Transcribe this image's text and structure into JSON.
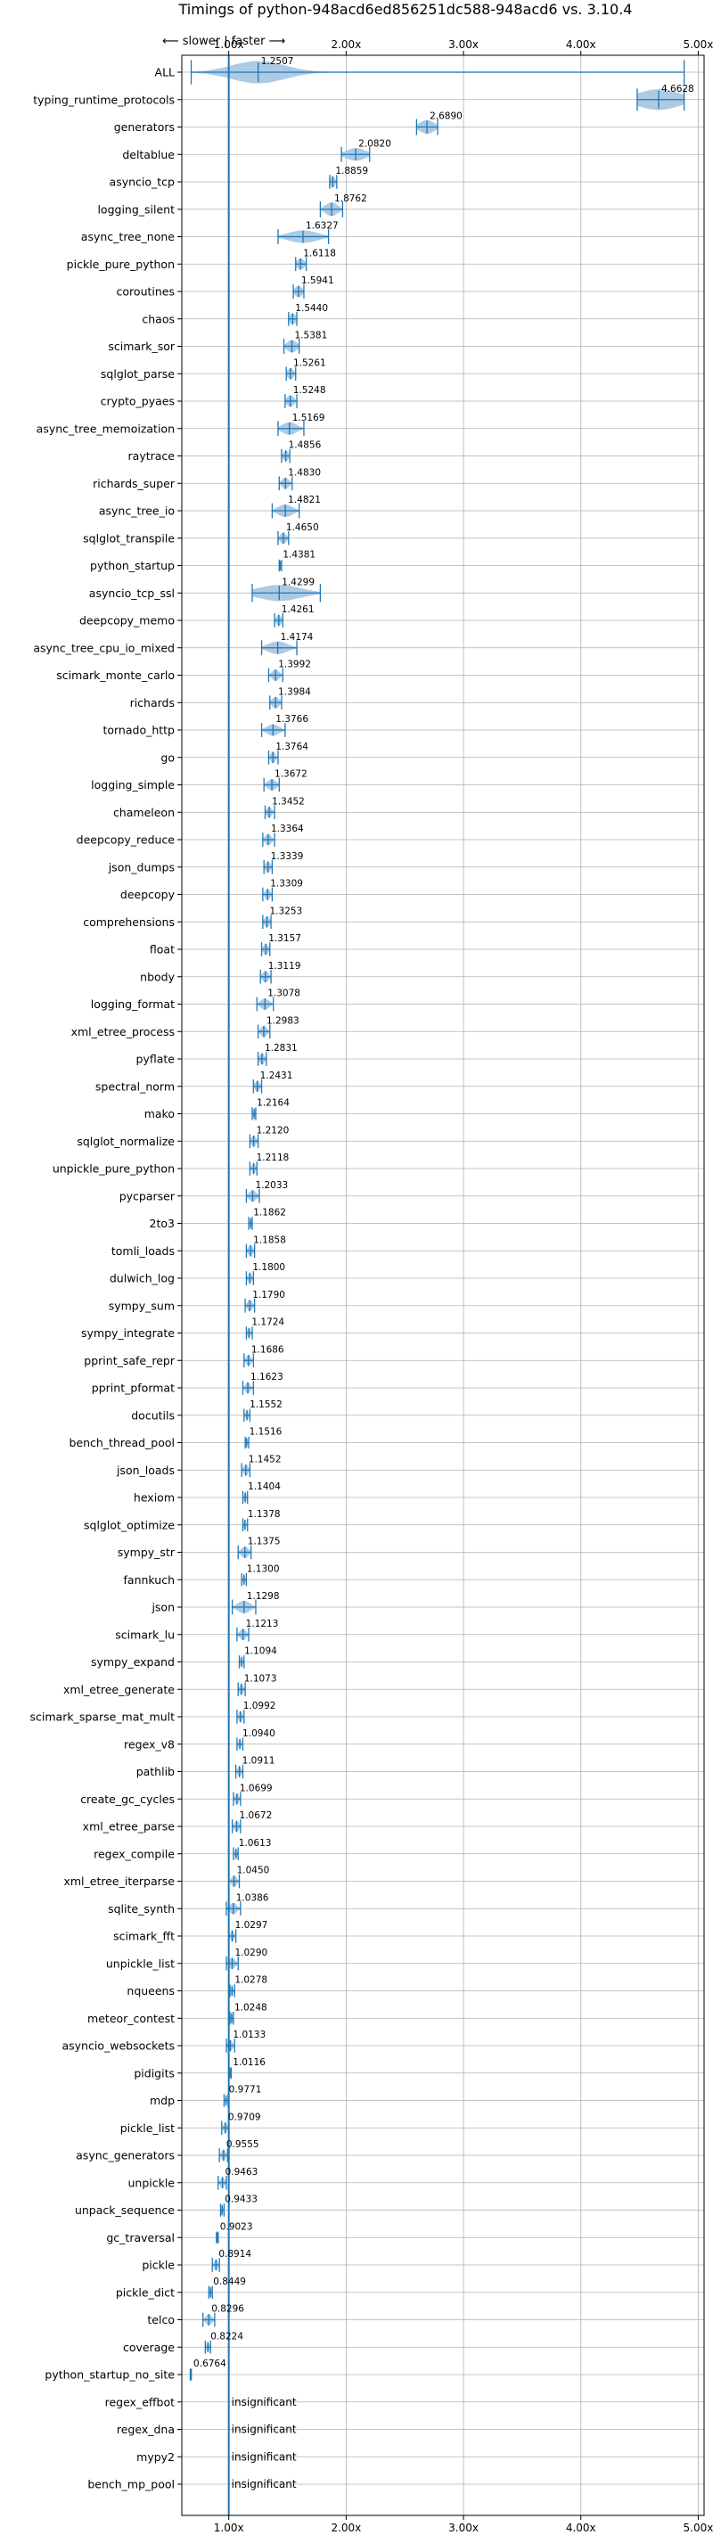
{
  "chart_data": {
    "type": "violin",
    "title": "Timings of python-948acd6ed856251dc588-948acd6 vs. 3.10.4",
    "direction_label": "⟵ slower | faster ⟶",
    "x_ticks": [
      {
        "value": 1.0,
        "label": "1.00x"
      },
      {
        "value": 2.0,
        "label": "2.00x"
      },
      {
        "value": 3.0,
        "label": "3.00x"
      },
      {
        "value": 4.0,
        "label": "4.00x"
      },
      {
        "value": 5.0,
        "label": "5.00x"
      }
    ],
    "xlim": [
      0.6,
      5.05
    ],
    "reference_line": 1.0,
    "grid": true,
    "insignificant_label": "insignificant",
    "benchmarks": [
      {
        "name": "ALL",
        "value": 1.2507,
        "low": 0.68,
        "high": 4.88,
        "spread": 0.22,
        "width": 1.0
      },
      {
        "name": "typing_runtime_protocols",
        "value": 4.6628,
        "low": 4.48,
        "high": 4.88,
        "spread": 0.18,
        "width": 0.9
      },
      {
        "name": "generators",
        "value": 2.689,
        "low": 2.6,
        "high": 2.78,
        "spread": 0.06,
        "width": 0.6
      },
      {
        "name": "deltablue",
        "value": 2.082,
        "low": 1.96,
        "high": 2.2,
        "spread": 0.08,
        "width": 0.55
      },
      {
        "name": "asyncio_tcp",
        "value": 1.8859,
        "low": 1.86,
        "high": 1.92,
        "spread": 0.02,
        "width": 0.5
      },
      {
        "name": "logging_silent",
        "value": 1.8762,
        "low": 1.78,
        "high": 1.97,
        "spread": 0.05,
        "width": 0.6
      },
      {
        "name": "async_tree_none",
        "value": 1.6327,
        "low": 1.42,
        "high": 1.85,
        "spread": 0.12,
        "width": 0.55
      },
      {
        "name": "pickle_pure_python",
        "value": 1.6118,
        "low": 1.57,
        "high": 1.66,
        "spread": 0.03,
        "width": 0.5
      },
      {
        "name": "coroutines",
        "value": 1.5941,
        "low": 1.55,
        "high": 1.64,
        "spread": 0.03,
        "width": 0.5
      },
      {
        "name": "chaos",
        "value": 1.544,
        "low": 1.51,
        "high": 1.58,
        "spread": 0.025,
        "width": 0.5
      },
      {
        "name": "scimark_sor",
        "value": 1.5381,
        "low": 1.47,
        "high": 1.6,
        "spread": 0.04,
        "width": 0.55
      },
      {
        "name": "sqlglot_parse",
        "value": 1.5261,
        "low": 1.49,
        "high": 1.57,
        "spread": 0.025,
        "width": 0.5
      },
      {
        "name": "crypto_pyaes",
        "value": 1.5248,
        "low": 1.48,
        "high": 1.58,
        "spread": 0.03,
        "width": 0.5
      },
      {
        "name": "async_tree_memoization",
        "value": 1.5169,
        "low": 1.42,
        "high": 1.64,
        "spread": 0.06,
        "width": 0.55
      },
      {
        "name": "raytrace",
        "value": 1.4856,
        "low": 1.45,
        "high": 1.52,
        "spread": 0.02,
        "width": 0.5
      },
      {
        "name": "richards_super",
        "value": 1.483,
        "low": 1.43,
        "high": 1.54,
        "spread": 0.03,
        "width": 0.5
      },
      {
        "name": "async_tree_io",
        "value": 1.4821,
        "low": 1.37,
        "high": 1.6,
        "spread": 0.06,
        "width": 0.55
      },
      {
        "name": "sqlglot_transpile",
        "value": 1.465,
        "low": 1.42,
        "high": 1.51,
        "spread": 0.025,
        "width": 0.5
      },
      {
        "name": "python_startup",
        "value": 1.4381,
        "low": 1.43,
        "high": 1.45,
        "spread": 0.005,
        "width": 0.4
      },
      {
        "name": "asyncio_tcp_ssl",
        "value": 1.4299,
        "low": 1.2,
        "high": 1.78,
        "spread": 0.18,
        "width": 0.7
      },
      {
        "name": "deepcopy_memo",
        "value": 1.4261,
        "low": 1.39,
        "high": 1.46,
        "spread": 0.02,
        "width": 0.5
      },
      {
        "name": "async_tree_cpu_io_mixed",
        "value": 1.4174,
        "low": 1.28,
        "high": 1.58,
        "spread": 0.08,
        "width": 0.55
      },
      {
        "name": "scimark_monte_carlo",
        "value": 1.3992,
        "low": 1.34,
        "high": 1.46,
        "spread": 0.03,
        "width": 0.5
      },
      {
        "name": "richards",
        "value": 1.3984,
        "low": 1.35,
        "high": 1.45,
        "spread": 0.03,
        "width": 0.5
      },
      {
        "name": "tornado_http",
        "value": 1.3766,
        "low": 1.28,
        "high": 1.48,
        "spread": 0.05,
        "width": 0.5
      },
      {
        "name": "go",
        "value": 1.3764,
        "low": 1.34,
        "high": 1.42,
        "spread": 0.02,
        "width": 0.5
      },
      {
        "name": "logging_simple",
        "value": 1.3672,
        "low": 1.3,
        "high": 1.43,
        "spread": 0.035,
        "width": 0.5
      },
      {
        "name": "chameleon",
        "value": 1.3452,
        "low": 1.31,
        "high": 1.39,
        "spread": 0.02,
        "width": 0.5
      },
      {
        "name": "deepcopy_reduce",
        "value": 1.3364,
        "low": 1.29,
        "high": 1.39,
        "spread": 0.025,
        "width": 0.5
      },
      {
        "name": "json_dumps",
        "value": 1.3339,
        "low": 1.3,
        "high": 1.37,
        "spread": 0.02,
        "width": 0.5
      },
      {
        "name": "deepcopy",
        "value": 1.3309,
        "low": 1.29,
        "high": 1.37,
        "spread": 0.02,
        "width": 0.5
      },
      {
        "name": "comprehensions",
        "value": 1.3253,
        "low": 1.29,
        "high": 1.36,
        "spread": 0.02,
        "width": 0.5
      },
      {
        "name": "float",
        "value": 1.3157,
        "low": 1.28,
        "high": 1.35,
        "spread": 0.02,
        "width": 0.5
      },
      {
        "name": "nbody",
        "value": 1.3119,
        "low": 1.27,
        "high": 1.36,
        "spread": 0.025,
        "width": 0.5
      },
      {
        "name": "logging_format",
        "value": 1.3078,
        "low": 1.24,
        "high": 1.38,
        "spread": 0.035,
        "width": 0.5
      },
      {
        "name": "xml_etree_process",
        "value": 1.2983,
        "low": 1.25,
        "high": 1.35,
        "spread": 0.025,
        "width": 0.5
      },
      {
        "name": "pyflate",
        "value": 1.2831,
        "low": 1.25,
        "high": 1.32,
        "spread": 0.02,
        "width": 0.5
      },
      {
        "name": "spectral_norm",
        "value": 1.2431,
        "low": 1.21,
        "high": 1.28,
        "spread": 0.02,
        "width": 0.5
      },
      {
        "name": "mako",
        "value": 1.2164,
        "low": 1.2,
        "high": 1.23,
        "spread": 0.008,
        "width": 0.45
      },
      {
        "name": "sqlglot_normalize",
        "value": 1.212,
        "low": 1.18,
        "high": 1.25,
        "spread": 0.02,
        "width": 0.5
      },
      {
        "name": "unpickle_pure_python",
        "value": 1.2118,
        "low": 1.18,
        "high": 1.24,
        "spread": 0.015,
        "width": 0.5
      },
      {
        "name": "pycparser",
        "value": 1.2033,
        "low": 1.15,
        "high": 1.26,
        "spread": 0.03,
        "width": 0.5
      },
      {
        "name": "2to3",
        "value": 1.1862,
        "low": 1.17,
        "high": 1.2,
        "spread": 0.008,
        "width": 0.45
      },
      {
        "name": "tomli_loads",
        "value": 1.1858,
        "low": 1.15,
        "high": 1.22,
        "spread": 0.02,
        "width": 0.5
      },
      {
        "name": "dulwich_log",
        "value": 1.18,
        "low": 1.15,
        "high": 1.21,
        "spread": 0.015,
        "width": 0.5
      },
      {
        "name": "sympy_sum",
        "value": 1.179,
        "low": 1.14,
        "high": 1.22,
        "spread": 0.02,
        "width": 0.5
      },
      {
        "name": "sympy_integrate",
        "value": 1.1724,
        "low": 1.15,
        "high": 1.2,
        "spread": 0.012,
        "width": 0.45
      },
      {
        "name": "pprint_safe_repr",
        "value": 1.1686,
        "low": 1.13,
        "high": 1.21,
        "spread": 0.02,
        "width": 0.5
      },
      {
        "name": "pprint_pformat",
        "value": 1.1623,
        "low": 1.12,
        "high": 1.21,
        "spread": 0.02,
        "width": 0.5
      },
      {
        "name": "docutils",
        "value": 1.1552,
        "low": 1.13,
        "high": 1.18,
        "spread": 0.012,
        "width": 0.45
      },
      {
        "name": "bench_thread_pool",
        "value": 1.1516,
        "low": 1.14,
        "high": 1.17,
        "spread": 0.008,
        "width": 0.4
      },
      {
        "name": "json_loads",
        "value": 1.1452,
        "low": 1.11,
        "high": 1.18,
        "spread": 0.018,
        "width": 0.5
      },
      {
        "name": "hexiom",
        "value": 1.1404,
        "low": 1.12,
        "high": 1.16,
        "spread": 0.01,
        "width": 0.45
      },
      {
        "name": "sqlglot_optimize",
        "value": 1.1378,
        "low": 1.12,
        "high": 1.16,
        "spread": 0.01,
        "width": 0.45
      },
      {
        "name": "sympy_str",
        "value": 1.1375,
        "low": 1.08,
        "high": 1.19,
        "spread": 0.03,
        "width": 0.5
      },
      {
        "name": "fannkuch",
        "value": 1.13,
        "low": 1.11,
        "high": 1.15,
        "spread": 0.01,
        "width": 0.45
      },
      {
        "name": "json",
        "value": 1.1298,
        "low": 1.03,
        "high": 1.23,
        "spread": 0.05,
        "width": 0.55
      },
      {
        "name": "scimark_lu",
        "value": 1.1213,
        "low": 1.07,
        "high": 1.17,
        "spread": 0.025,
        "width": 0.5
      },
      {
        "name": "sympy_expand",
        "value": 1.1094,
        "low": 1.09,
        "high": 1.13,
        "spread": 0.01,
        "width": 0.45
      },
      {
        "name": "xml_etree_generate",
        "value": 1.1073,
        "low": 1.08,
        "high": 1.14,
        "spread": 0.015,
        "width": 0.5
      },
      {
        "name": "scimark_sparse_mat_mult",
        "value": 1.0992,
        "low": 1.07,
        "high": 1.13,
        "spread": 0.015,
        "width": 0.5
      },
      {
        "name": "regex_v8",
        "value": 1.094,
        "low": 1.07,
        "high": 1.12,
        "spread": 0.012,
        "width": 0.45
      },
      {
        "name": "pathlib",
        "value": 1.0911,
        "low": 1.06,
        "high": 1.12,
        "spread": 0.015,
        "width": 0.5
      },
      {
        "name": "create_gc_cycles",
        "value": 1.0699,
        "low": 1.04,
        "high": 1.1,
        "spread": 0.015,
        "width": 0.5
      },
      {
        "name": "xml_etree_parse",
        "value": 1.0672,
        "low": 1.03,
        "high": 1.1,
        "spread": 0.018,
        "width": 0.5
      },
      {
        "name": "regex_compile",
        "value": 1.0613,
        "low": 1.04,
        "high": 1.08,
        "spread": 0.01,
        "width": 0.45
      },
      {
        "name": "xml_etree_iterparse",
        "value": 1.045,
        "low": 1.0,
        "high": 1.09,
        "spread": 0.022,
        "width": 0.5
      },
      {
        "name": "sqlite_synth",
        "value": 1.0386,
        "low": 0.98,
        "high": 1.1,
        "spread": 0.03,
        "width": 0.5
      },
      {
        "name": "scimark_fft",
        "value": 1.0297,
        "low": 1.0,
        "high": 1.06,
        "spread": 0.015,
        "width": 0.5
      },
      {
        "name": "unpickle_list",
        "value": 1.029,
        "low": 0.98,
        "high": 1.08,
        "spread": 0.025,
        "width": 0.5
      },
      {
        "name": "nqueens",
        "value": 1.0278,
        "low": 1.01,
        "high": 1.05,
        "spread": 0.01,
        "width": 0.45
      },
      {
        "name": "meteor_contest",
        "value": 1.0248,
        "low": 1.01,
        "high": 1.04,
        "spread": 0.008,
        "width": 0.45
      },
      {
        "name": "asyncio_websockets",
        "value": 1.0133,
        "low": 0.98,
        "high": 1.05,
        "spread": 0.018,
        "width": 0.5
      },
      {
        "name": "pidigits",
        "value": 1.0116,
        "low": 1.005,
        "high": 1.02,
        "spread": 0.004,
        "width": 0.4
      },
      {
        "name": "mdp",
        "value": 0.9771,
        "low": 0.96,
        "high": 0.995,
        "spread": 0.008,
        "width": 0.45
      },
      {
        "name": "pickle_list",
        "value": 0.9709,
        "low": 0.94,
        "high": 1.0,
        "spread": 0.015,
        "width": 0.5
      },
      {
        "name": "async_generators",
        "value": 0.9555,
        "low": 0.92,
        "high": 0.99,
        "spread": 0.018,
        "width": 0.5
      },
      {
        "name": "unpickle",
        "value": 0.9463,
        "low": 0.91,
        "high": 0.98,
        "spread": 0.018,
        "width": 0.5
      },
      {
        "name": "unpack_sequence",
        "value": 0.9433,
        "low": 0.93,
        "high": 0.96,
        "spread": 0.008,
        "width": 0.45
      },
      {
        "name": "gc_traversal",
        "value": 0.9023,
        "low": 0.895,
        "high": 0.91,
        "spread": 0.004,
        "width": 0.4
      },
      {
        "name": "pickle",
        "value": 0.8914,
        "low": 0.86,
        "high": 0.92,
        "spread": 0.015,
        "width": 0.5
      },
      {
        "name": "pickle_dict",
        "value": 0.8449,
        "low": 0.83,
        "high": 0.86,
        "spread": 0.008,
        "width": 0.45
      },
      {
        "name": "telco",
        "value": 0.8296,
        "low": 0.78,
        "high": 0.88,
        "spread": 0.025,
        "width": 0.5
      },
      {
        "name": "coverage",
        "value": 0.8224,
        "low": 0.8,
        "high": 0.845,
        "spread": 0.012,
        "width": 0.45
      },
      {
        "name": "python_startup_no_site",
        "value": 0.6764,
        "low": 0.672,
        "high": 0.681,
        "spread": 0.003,
        "width": 0.4
      },
      {
        "name": "regex_effbot",
        "insignificant": true
      },
      {
        "name": "regex_dna",
        "insignificant": true
      },
      {
        "name": "mypy2",
        "insignificant": true
      },
      {
        "name": "bench_mp_pool",
        "insignificant": true
      }
    ]
  },
  "colors": {
    "violin_fill": "#a9c7e4",
    "line": "#1f77b4",
    "median_marker": "#f08080",
    "grid": "#b0b0b0",
    "axis": "#000000"
  }
}
